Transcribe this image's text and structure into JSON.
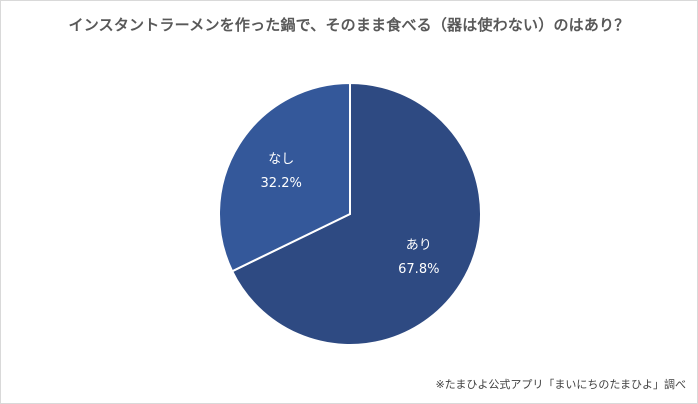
{
  "chart_data": {
    "type": "pie",
    "title": "インスタントラーメンを作った鍋で、そのまま食べる（器は使わない）のはあり？",
    "slices": [
      {
        "label": "あり",
        "value": 67.8,
        "value_label": "67.8%",
        "color": "#2e4a82"
      },
      {
        "label": "なし",
        "value": 32.2,
        "value_label": "32.2%",
        "color": "#34589a"
      }
    ],
    "start": "12 o'clock",
    "direction": "clockwise",
    "legend": "none"
  },
  "source_note": "※たまひよ公式アプリ「まいにちのたまひよ」調べ"
}
